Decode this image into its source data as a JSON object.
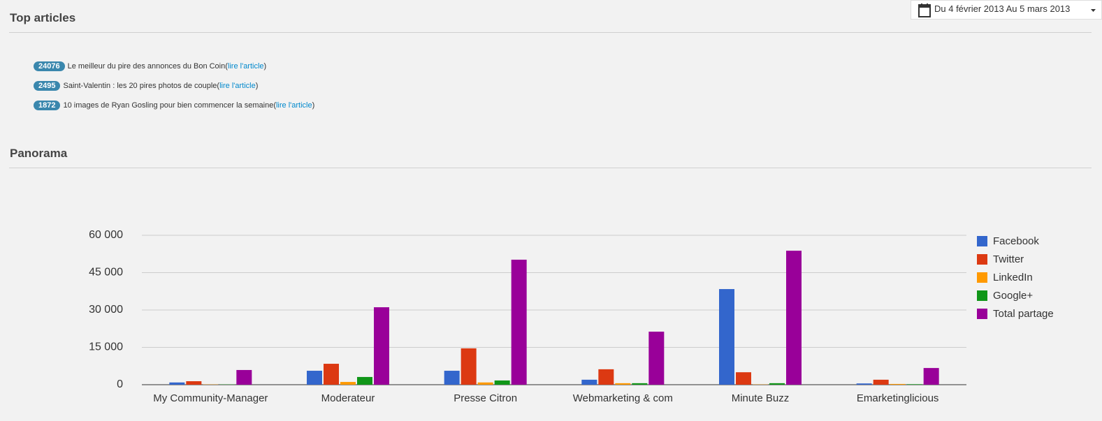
{
  "header": {
    "title": "Top articles",
    "date_range": "Du 4 février 2013 Au 5 mars 2013"
  },
  "articles": {
    "link_wrap": [
      "(",
      ")"
    ],
    "items": [
      {
        "count": 24076,
        "title": "Le meilleur du pire des annonces du Bon Coin",
        "link": "lire l'article"
      },
      {
        "count": 2495,
        "title": "Saint-Valentin : les 20 pires photos de couple",
        "link": "lire l'article"
      },
      {
        "count": 1872,
        "title": "10 images de Ryan Gosling pour bien commencer la semaine",
        "link": "lire l'article"
      }
    ]
  },
  "panorama": {
    "title": "Panorama"
  },
  "chart_data": {
    "type": "bar",
    "categories": [
      "My Community-Manager",
      "Moderateur",
      "Presse Citron",
      "Webmarketing & com",
      "Minute Buzz",
      "Emarketinglicious"
    ],
    "series": [
      {
        "name": "Facebook",
        "color": "#3366cc",
        "values": [
          900,
          5600,
          5600,
          2000,
          38400,
          500
        ]
      },
      {
        "name": "Twitter",
        "color": "#dc3912",
        "values": [
          1400,
          8400,
          14600,
          6200,
          5000,
          2000
        ]
      },
      {
        "name": "LinkedIn",
        "color": "#ff9900",
        "values": [
          100,
          1100,
          900,
          600,
          100,
          300
        ]
      },
      {
        "name": "Google+",
        "color": "#109618",
        "values": [
          100,
          3100,
          1700,
          600,
          600,
          200
        ]
      },
      {
        "name": "Total partage",
        "color": "#990099",
        "values": [
          5900,
          31100,
          50200,
          21300,
          53800,
          6700
        ]
      }
    ],
    "ylim": [
      0,
      60000
    ],
    "yticks": [
      0,
      {
        "value": 15000,
        "label": "15 000"
      },
      {
        "value": 30000,
        "label": "30 000"
      },
      {
        "value": 45000,
        "label": "45 000"
      },
      {
        "value": 60000,
        "label": "60 000"
      }
    ],
    "grid": true,
    "legend": "right"
  }
}
